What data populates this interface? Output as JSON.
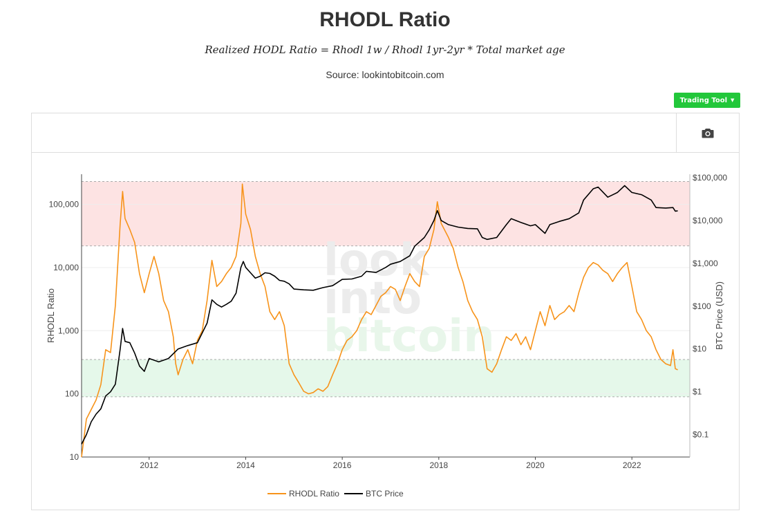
{
  "header": {
    "title": "RHODL Ratio",
    "subtitle": "Realized HODL Ratio = Rhodl 1w / Rhodl 1yr-2yr * Total market age",
    "source": "Source: lookintobitcoin.com"
  },
  "toolbar": {
    "trading_tool_label": "Trading Tool",
    "camera_icon": "camera-icon"
  },
  "watermark": [
    "look",
    "into",
    "bitcoin"
  ],
  "colors": {
    "rhodl": "#f7931a",
    "price": "#000000",
    "red_band": "#fde3e3",
    "green_band": "#e5f8ea",
    "button": "#22c73a"
  },
  "chart_data": {
    "type": "line",
    "x_ticks": [
      "2012",
      "2014",
      "2016",
      "2018",
      "2020",
      "2022"
    ],
    "y_left": {
      "label": "RHODL Ratio",
      "scale": "log",
      "range": [
        10,
        300000
      ],
      "ticks": [
        "10",
        "100",
        "1,000",
        "10,000",
        "100,000"
      ]
    },
    "y_right": {
      "label": "BTC Price (USD)",
      "scale": "log",
      "range": [
        0.03,
        120000
      ],
      "ticks": [
        "$0.1",
        "$1",
        "$10",
        "$100",
        "$1,000",
        "$10,000",
        "$100,000"
      ]
    },
    "bands": [
      {
        "name": "top",
        "color": "#fde3e3",
        "range": [
          22000,
          230000
        ]
      },
      {
        "name": "bottom",
        "color": "#e5f8ea",
        "range": [
          90,
          350
        ]
      }
    ],
    "series": [
      {
        "name": "RHODL Ratio",
        "axis": "left",
        "color": "#f7931a",
        "points": [
          [
            2010.6,
            10
          ],
          [
            2010.7,
            40
          ],
          [
            2010.9,
            80
          ],
          [
            2011.0,
            140
          ],
          [
            2011.1,
            500
          ],
          [
            2011.2,
            450
          ],
          [
            2011.3,
            2500
          ],
          [
            2011.4,
            50000
          ],
          [
            2011.45,
            160000
          ],
          [
            2011.5,
            60000
          ],
          [
            2011.6,
            40000
          ],
          [
            2011.7,
            25000
          ],
          [
            2011.8,
            8000
          ],
          [
            2011.9,
            4000
          ],
          [
            2012.0,
            8000
          ],
          [
            2012.1,
            15000
          ],
          [
            2012.2,
            8000
          ],
          [
            2012.3,
            3000
          ],
          [
            2012.4,
            2000
          ],
          [
            2012.5,
            800
          ],
          [
            2012.55,
            300
          ],
          [
            2012.6,
            200
          ],
          [
            2012.7,
            350
          ],
          [
            2012.8,
            500
          ],
          [
            2012.9,
            300
          ],
          [
            2013.0,
            700
          ],
          [
            2013.1,
            1000
          ],
          [
            2013.2,
            3000
          ],
          [
            2013.3,
            13000
          ],
          [
            2013.4,
            5000
          ],
          [
            2013.5,
            6000
          ],
          [
            2013.6,
            8000
          ],
          [
            2013.7,
            10000
          ],
          [
            2013.8,
            15000
          ],
          [
            2013.9,
            50000
          ],
          [
            2013.93,
            210000
          ],
          [
            2014.0,
            70000
          ],
          [
            2014.1,
            40000
          ],
          [
            2014.2,
            15000
          ],
          [
            2014.3,
            8000
          ],
          [
            2014.4,
            5000
          ],
          [
            2014.5,
            2000
          ],
          [
            2014.6,
            1500
          ],
          [
            2014.7,
            2000
          ],
          [
            2014.8,
            1200
          ],
          [
            2014.9,
            300
          ],
          [
            2015.0,
            200
          ],
          [
            2015.1,
            150
          ],
          [
            2015.2,
            110
          ],
          [
            2015.3,
            100
          ],
          [
            2015.4,
            105
          ],
          [
            2015.5,
            120
          ],
          [
            2015.6,
            110
          ],
          [
            2015.7,
            130
          ],
          [
            2015.8,
            200
          ],
          [
            2015.9,
            300
          ],
          [
            2016.0,
            500
          ],
          [
            2016.1,
            700
          ],
          [
            2016.2,
            800
          ],
          [
            2016.3,
            1000
          ],
          [
            2016.4,
            1500
          ],
          [
            2016.5,
            2000
          ],
          [
            2016.6,
            1800
          ],
          [
            2016.7,
            2500
          ],
          [
            2016.8,
            3500
          ],
          [
            2016.9,
            4000
          ],
          [
            2017.0,
            5000
          ],
          [
            2017.1,
            4500
          ],
          [
            2017.2,
            3000
          ],
          [
            2017.3,
            5000
          ],
          [
            2017.4,
            8000
          ],
          [
            2017.5,
            6000
          ],
          [
            2017.6,
            5000
          ],
          [
            2017.7,
            15000
          ],
          [
            2017.8,
            20000
          ],
          [
            2017.9,
            40000
          ],
          [
            2017.97,
            110000
          ],
          [
            2018.05,
            50000
          ],
          [
            2018.2,
            30000
          ],
          [
            2018.3,
            20000
          ],
          [
            2018.4,
            10000
          ],
          [
            2018.5,
            6000
          ],
          [
            2018.6,
            3000
          ],
          [
            2018.7,
            2000
          ],
          [
            2018.8,
            1500
          ],
          [
            2018.9,
            800
          ],
          [
            2019.0,
            250
          ],
          [
            2019.1,
            220
          ],
          [
            2019.2,
            300
          ],
          [
            2019.3,
            500
          ],
          [
            2019.4,
            800
          ],
          [
            2019.5,
            700
          ],
          [
            2019.6,
            900
          ],
          [
            2019.7,
            600
          ],
          [
            2019.8,
            800
          ],
          [
            2019.9,
            500
          ],
          [
            2020.0,
            1000
          ],
          [
            2020.1,
            2000
          ],
          [
            2020.2,
            1200
          ],
          [
            2020.3,
            2500
          ],
          [
            2020.4,
            1500
          ],
          [
            2020.5,
            1800
          ],
          [
            2020.6,
            2000
          ],
          [
            2020.7,
            2500
          ],
          [
            2020.8,
            2000
          ],
          [
            2020.9,
            4000
          ],
          [
            2021.0,
            7000
          ],
          [
            2021.1,
            10000
          ],
          [
            2021.2,
            12000
          ],
          [
            2021.3,
            11000
          ],
          [
            2021.4,
            9000
          ],
          [
            2021.5,
            8000
          ],
          [
            2021.6,
            6000
          ],
          [
            2021.7,
            8000
          ],
          [
            2021.8,
            10000
          ],
          [
            2021.9,
            12000
          ],
          [
            2022.0,
            5000
          ],
          [
            2022.1,
            2000
          ],
          [
            2022.2,
            1500
          ],
          [
            2022.3,
            1000
          ],
          [
            2022.4,
            800
          ],
          [
            2022.5,
            500
          ],
          [
            2022.6,
            350
          ],
          [
            2022.7,
            300
          ],
          [
            2022.8,
            280
          ],
          [
            2022.85,
            500
          ],
          [
            2022.9,
            250
          ],
          [
            2022.95,
            240
          ]
        ]
      },
      {
        "name": "BTC Price",
        "axis": "right",
        "color": "#000000",
        "points": [
          [
            2010.6,
            0.06
          ],
          [
            2010.7,
            0.1
          ],
          [
            2010.8,
            0.2
          ],
          [
            2010.9,
            0.3
          ],
          [
            2011.0,
            0.4
          ],
          [
            2011.1,
            0.8
          ],
          [
            2011.2,
            1.0
          ],
          [
            2011.3,
            1.5
          ],
          [
            2011.4,
            10
          ],
          [
            2011.45,
            30
          ],
          [
            2011.5,
            15
          ],
          [
            2011.6,
            14
          ],
          [
            2011.7,
            8
          ],
          [
            2011.8,
            4
          ],
          [
            2011.9,
            3
          ],
          [
            2012.0,
            6
          ],
          [
            2012.2,
            5
          ],
          [
            2012.4,
            6
          ],
          [
            2012.6,
            10
          ],
          [
            2012.8,
            12
          ],
          [
            2013.0,
            14
          ],
          [
            2013.2,
            40
          ],
          [
            2013.3,
            140
          ],
          [
            2013.4,
            110
          ],
          [
            2013.5,
            95
          ],
          [
            2013.6,
            110
          ],
          [
            2013.7,
            130
          ],
          [
            2013.8,
            200
          ],
          [
            2013.9,
            800
          ],
          [
            2013.95,
            1100
          ],
          [
            2014.0,
            800
          ],
          [
            2014.1,
            600
          ],
          [
            2014.2,
            450
          ],
          [
            2014.3,
            500
          ],
          [
            2014.4,
            600
          ],
          [
            2014.5,
            580
          ],
          [
            2014.6,
            500
          ],
          [
            2014.7,
            400
          ],
          [
            2014.8,
            380
          ],
          [
            2014.9,
            330
          ],
          [
            2015.0,
            250
          ],
          [
            2015.2,
            240
          ],
          [
            2015.4,
            235
          ],
          [
            2015.6,
            270
          ],
          [
            2015.8,
            300
          ],
          [
            2016.0,
            420
          ],
          [
            2016.2,
            430
          ],
          [
            2016.4,
            500
          ],
          [
            2016.5,
            650
          ],
          [
            2016.7,
            610
          ],
          [
            2016.9,
            800
          ],
          [
            2017.0,
            950
          ],
          [
            2017.2,
            1100
          ],
          [
            2017.4,
            1500
          ],
          [
            2017.5,
            2500
          ],
          [
            2017.7,
            4000
          ],
          [
            2017.8,
            6000
          ],
          [
            2017.9,
            10000
          ],
          [
            2017.97,
            17000
          ],
          [
            2018.05,
            10000
          ],
          [
            2018.2,
            8000
          ],
          [
            2018.4,
            7000
          ],
          [
            2018.6,
            6500
          ],
          [
            2018.8,
            6400
          ],
          [
            2018.9,
            4000
          ],
          [
            2019.0,
            3600
          ],
          [
            2019.2,
            4000
          ],
          [
            2019.4,
            8000
          ],
          [
            2019.5,
            11000
          ],
          [
            2019.7,
            9000
          ],
          [
            2019.9,
            7500
          ],
          [
            2020.0,
            8000
          ],
          [
            2020.2,
            5000
          ],
          [
            2020.3,
            8000
          ],
          [
            2020.5,
            9500
          ],
          [
            2020.7,
            11000
          ],
          [
            2020.9,
            15000
          ],
          [
            2021.0,
            30000
          ],
          [
            2021.2,
            55000
          ],
          [
            2021.3,
            60000
          ],
          [
            2021.5,
            35000
          ],
          [
            2021.7,
            45000
          ],
          [
            2021.85,
            65000
          ],
          [
            2022.0,
            45000
          ],
          [
            2022.2,
            40000
          ],
          [
            2022.4,
            30000
          ],
          [
            2022.5,
            20000
          ],
          [
            2022.7,
            19500
          ],
          [
            2022.85,
            20000
          ],
          [
            2022.9,
            16500
          ],
          [
            2022.95,
            16800
          ]
        ]
      }
    ],
    "legend": {
      "placement": "bottom",
      "items": [
        "RHODL Ratio",
        "BTC Price"
      ]
    }
  }
}
